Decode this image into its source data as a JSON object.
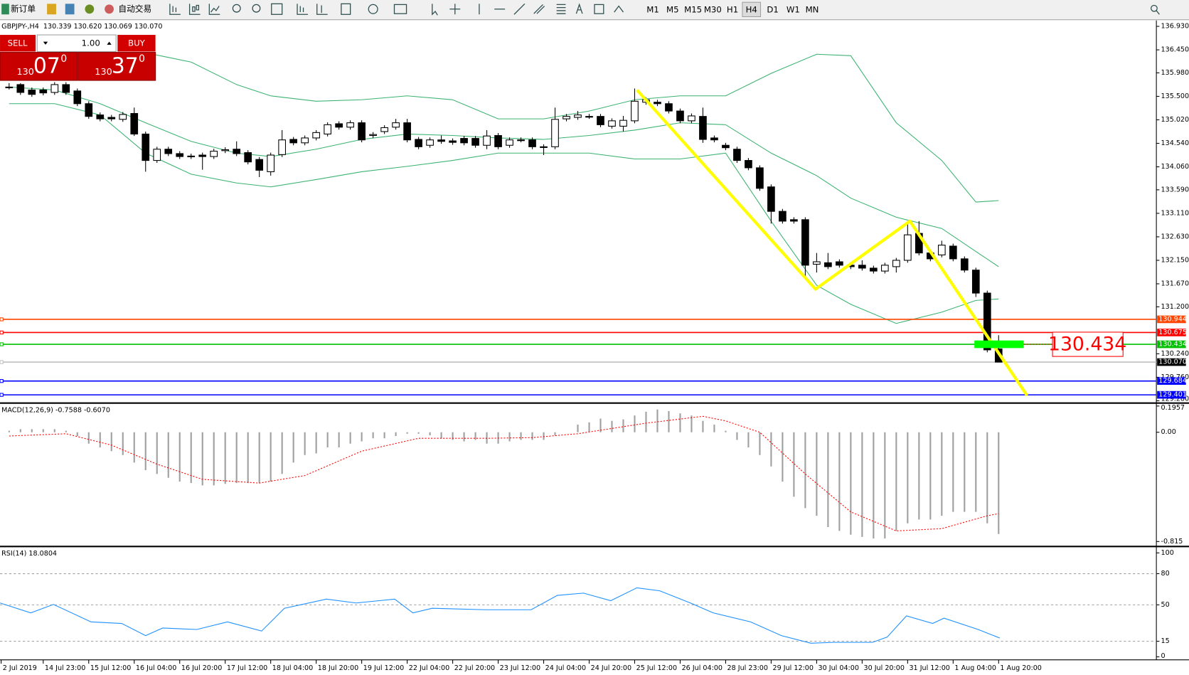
{
  "toolbar": {
    "new_order": "新订单",
    "auto_trading": "自动交易",
    "timeframes": [
      "M1",
      "M5",
      "M15",
      "M30",
      "H1",
      "H4",
      "D1",
      "W1",
      "MN"
    ]
  },
  "trade_panel": {
    "sell": "SELL",
    "lots": "1.00",
    "buy": "BUY",
    "bid": {
      "big": "130",
      "main": "07",
      "pip": "0"
    },
    "ask": {
      "big": "130",
      "main": "37",
      "pip": "0"
    }
  },
  "chart_data": [
    {
      "type": "candlestick",
      "title": "GBPJPY-,H4  130.339 130.620 130.069 130.070",
      "up_color": "#ffffff",
      "down_color": "#000000",
      "open": [
        135.69,
        135.74,
        135.63,
        135.63,
        135.58,
        135.74,
        135.61,
        135.35,
        135.12,
        135.07,
        135.03,
        135.15,
        134.73,
        134.19,
        134.42,
        134.33,
        134.28,
        134.3,
        134.27,
        134.39,
        134.42,
        134.35,
        134.21,
        133.96,
        134.31,
        134.62,
        134.55,
        134.65,
        134.73,
        134.94,
        134.87,
        134.96,
        134.7,
        134.78,
        134.87,
        134.96,
        134.62,
        134.5,
        134.61,
        134.59,
        134.64,
        134.64,
        134.5,
        134.7,
        134.5,
        134.61,
        134.61,
        134.47,
        134.47,
        135.04,
        135.07,
        135.09,
        135.09,
        134.89,
        134.89,
        135.0,
        135.38,
        135.38,
        135.35,
        135.2,
        135.0,
        135.09,
        134.65,
        134.5,
        134.42,
        134.19,
        134.04,
        133.65,
        133.15,
        132.98,
        132.98,
        132.07,
        132.1,
        132.12,
        132.05,
        132.05,
        131.99,
        131.93,
        132.02,
        132.15,
        132.7,
        132.3,
        132.26,
        132.44,
        132.18,
        131.95,
        131.48,
        130.339
      ],
      "high": [
        135.77,
        135.77,
        135.68,
        135.68,
        135.79,
        135.79,
        135.66,
        135.4,
        135.17,
        135.12,
        135.18,
        135.27,
        134.78,
        134.47,
        134.47,
        134.38,
        134.33,
        134.35,
        134.43,
        134.46,
        134.58,
        134.4,
        134.26,
        134.35,
        134.81,
        134.67,
        134.7,
        134.81,
        134.97,
        134.99,
        135.01,
        135.01,
        134.77,
        134.91,
        135.04,
        135.04,
        134.67,
        134.66,
        134.7,
        134.64,
        134.69,
        134.69,
        134.81,
        134.75,
        134.66,
        134.66,
        134.66,
        134.52,
        135.27,
        135.14,
        135.2,
        135.14,
        135.14,
        135.05,
        135.1,
        135.66,
        135.48,
        135.43,
        135.4,
        135.25,
        135.15,
        135.27,
        134.7,
        134.55,
        134.47,
        134.24,
        134.09,
        133.7,
        133.2,
        133.03,
        133.03,
        132.3,
        132.3,
        132.17,
        132.1,
        132.15,
        132.04,
        132.1,
        132.2,
        132.95,
        132.95,
        132.35,
        132.55,
        132.49,
        132.23,
        132.0,
        131.53,
        130.62
      ],
      "low": [
        135.64,
        135.53,
        135.49,
        135.52,
        135.53,
        135.53,
        135.3,
        135.04,
        134.99,
        134.99,
        134.98,
        134.69,
        133.96,
        134.14,
        134.28,
        134.22,
        134.22,
        134.0,
        134.22,
        134.34,
        134.28,
        134.11,
        133.85,
        133.88,
        134.26,
        134.5,
        134.5,
        134.6,
        134.68,
        134.82,
        134.82,
        134.56,
        134.65,
        134.73,
        134.82,
        134.56,
        134.42,
        134.45,
        134.53,
        134.51,
        134.5,
        134.45,
        134.42,
        134.42,
        134.45,
        134.56,
        134.42,
        134.3,
        134.42,
        134.99,
        135.02,
        135.04,
        134.87,
        134.84,
        134.78,
        134.95,
        135.33,
        135.3,
        135.15,
        134.95,
        134.95,
        134.55,
        134.56,
        134.4,
        134.14,
        133.99,
        133.57,
        132.9,
        132.9,
        132.9,
        131.8,
        131.9,
        131.97,
        132.0,
        131.97,
        131.94,
        131.88,
        131.88,
        131.9,
        132.1,
        132.25,
        132.13,
        132.21,
        132.13,
        131.9,
        131.4,
        130.27,
        130.069
      ],
      "close": [
        135.69,
        135.58,
        135.54,
        135.57,
        135.74,
        135.58,
        135.35,
        135.09,
        135.04,
        135.04,
        135.13,
        134.73,
        134.19,
        134.42,
        134.33,
        134.27,
        134.27,
        134.27,
        134.38,
        134.41,
        134.33,
        134.16,
        133.99,
        134.3,
        134.61,
        134.55,
        134.65,
        134.76,
        134.92,
        134.87,
        134.96,
        134.61,
        134.72,
        134.86,
        134.96,
        134.61,
        134.47,
        134.61,
        134.58,
        134.56,
        134.55,
        134.5,
        134.69,
        134.47,
        134.61,
        134.61,
        134.47,
        134.47,
        135.03,
        135.09,
        135.12,
        135.09,
        134.92,
        135.0,
        135.01,
        135.4,
        135.43,
        135.35,
        135.2,
        135.0,
        135.1,
        134.62,
        134.61,
        134.45,
        134.19,
        134.04,
        133.62,
        133.15,
        132.95,
        132.95,
        132.05,
        132.12,
        132.02,
        132.05,
        132.02,
        131.99,
        131.93,
        132.05,
        132.15,
        132.67,
        132.3,
        132.18,
        132.46,
        132.18,
        131.95,
        131.48,
        130.32,
        130.07
      ],
      "bands": {
        "color": "#3cb371",
        "x": [
          0,
          4,
          8,
          12,
          16,
          20,
          23,
          27,
          31,
          35,
          39,
          43,
          47,
          51,
          55,
          59,
          63,
          67,
          71,
          74,
          78,
          82,
          85,
          87
        ],
        "upper": [
          136.36,
          136.39,
          136.39,
          136.39,
          136.2,
          135.74,
          135.51,
          135.4,
          135.43,
          135.51,
          135.43,
          135.04,
          135.04,
          135.2,
          135.43,
          135.51,
          135.51,
          135.97,
          136.36,
          136.33,
          134.96,
          134.19,
          133.34,
          133.37
        ],
        "middle": [
          135.69,
          135.63,
          135.35,
          134.96,
          134.58,
          134.34,
          134.27,
          134.42,
          134.62,
          134.73,
          134.7,
          134.65,
          134.62,
          134.7,
          134.81,
          134.96,
          134.92,
          134.34,
          133.88,
          133.42,
          133.03,
          132.8,
          132.33,
          132.02
        ],
        "lower": [
          135.35,
          135.35,
          135.12,
          134.34,
          133.91,
          133.73,
          133.65,
          133.8,
          133.96,
          134.07,
          134.19,
          134.34,
          134.34,
          134.34,
          134.22,
          134.22,
          134.34,
          132.95,
          131.64,
          131.25,
          130.86,
          131.09,
          131.33,
          131.36
        ]
      },
      "zigzag": {
        "color": "#ffff00",
        "x": [
          55.2,
          70.9,
          79.2,
          89.5
        ],
        "y": [
          135.63,
          131.56,
          132.95,
          129.39
        ]
      },
      "levels": [
        {
          "value": 130.944,
          "color": "#ff4500",
          "box_color": "#ff4500"
        },
        {
          "value": 130.675,
          "color": "#ff0000",
          "box_color": "#ff0000"
        },
        {
          "value": 130.434,
          "color": "#00c000",
          "box_color": "#00c000"
        },
        {
          "value": 130.07,
          "label": "130.070",
          "color": "#c0c0c0",
          "box_color": "#000000"
        },
        {
          "value": 129.684,
          "color": "#0000ff",
          "box_color": "#0000ff"
        },
        {
          "value": 129.401,
          "color": "#0000ff",
          "box_color": "#0000ff"
        }
      ],
      "annotation": {
        "value": 130.434,
        "color": "#00ff00"
      },
      "xlim": [
        -0.8,
        100.87
      ],
      "ylim": [
        129.24,
        137.05
      ],
      "yticks": [
        {
          "value": 136.93,
          "label": "136.930"
        },
        {
          "value": 136.45,
          "label": "136.450"
        },
        {
          "value": 135.98,
          "label": "135.980"
        },
        {
          "value": 135.5,
          "label": "135.500"
        },
        {
          "value": 135.02,
          "label": "135.020"
        },
        {
          "value": 134.54,
          "label": "134.540"
        },
        {
          "value": 134.06,
          "label": "134.060"
        },
        {
          "value": 133.59,
          "label": "133.590"
        },
        {
          "value": 133.11,
          "label": "133.110"
        },
        {
          "value": 132.63,
          "label": "132.630"
        },
        {
          "value": 132.15,
          "label": "132.150"
        },
        {
          "value": 131.67,
          "label": "131.670"
        },
        {
          "value": 131.2,
          "label": "131.200"
        },
        {
          "value": 130.24,
          "label": "130.240"
        },
        {
          "value": 129.76,
          "label": "129.760"
        },
        {
          "value": 129.28,
          "label": "129.280"
        }
      ]
    },
    {
      "type": "macd",
      "title": "MACD(12,26,9) -0.7588 -0.6070",
      "color": "#a0a0a0",
      "values": [
        0.011,
        0.023,
        0.023,
        0.023,
        0.023,
        0.011,
        -0.028,
        -0.085,
        -0.113,
        -0.141,
        -0.17,
        -0.226,
        -0.283,
        -0.311,
        -0.34,
        -0.368,
        -0.379,
        -0.396,
        -0.396,
        -0.385,
        -0.379,
        -0.379,
        -0.379,
        -0.368,
        -0.311,
        -0.226,
        -0.17,
        -0.158,
        -0.113,
        -0.113,
        -0.085,
        -0.068,
        -0.045,
        -0.045,
        -0.028,
        -0.011,
        -0.011,
        -0.023,
        -0.045,
        -0.057,
        -0.068,
        -0.057,
        -0.085,
        -0.085,
        -0.068,
        -0.057,
        -0.057,
        -0.057,
        -0.023,
        0,
        0.057,
        0.074,
        0.102,
        0.085,
        0.096,
        0.125,
        0.153,
        0.17,
        0.158,
        0.141,
        0.125,
        0.085,
        0.057,
        0.011,
        -0.057,
        -0.113,
        -0.17,
        -0.255,
        -0.368,
        -0.481,
        -0.566,
        -0.623,
        -0.707,
        -0.736,
        -0.764,
        -0.781,
        -0.792,
        -0.792,
        -0.736,
        -0.679,
        -0.651,
        -0.651,
        -0.623,
        -0.594,
        -0.594,
        -0.594,
        -0.679,
        -0.7588
      ],
      "signal": {
        "color": "#ff0000",
        "x": [
          0,
          5,
          9,
          13,
          17,
          22,
          26,
          31,
          36,
          42,
          46,
          50,
          56,
          61,
          63,
          66,
          70,
          74,
          78,
          82,
          86,
          87
        ],
        "values": [
          -0.028,
          -0.011,
          -0.096,
          -0.238,
          -0.351,
          -0.379,
          -0.323,
          -0.141,
          -0.045,
          -0.045,
          -0.04,
          -0.011,
          0.068,
          0.119,
          0.085,
          0,
          -0.311,
          -0.594,
          -0.736,
          -0.719,
          -0.623,
          -0.607
        ]
      },
      "ylim": [
        -0.849,
        0.209
      ],
      "yticks": [
        0.1957,
        {
          "value": 0,
          "label": "0.00"
        },
        -0.815
      ]
    },
    {
      "type": "rsi",
      "title": "RSI(14) 18.0804",
      "color": "#1e90ff",
      "x": [
        -0.8,
        1.9,
        3.9,
        7.2,
        9.9,
        12,
        13.5,
        16.5,
        19.2,
        22.2,
        24.2,
        27.9,
        30.5,
        33.9,
        35.5,
        37.2,
        41.9,
        45.9,
        48.2,
        50.5,
        52.9,
        55.2,
        57.2,
        59.9,
        61.9,
        65.2,
        67.9,
        70.5,
        72.5,
        75.9,
        77.2,
        78.9,
        81.2,
        82.2,
        85.2,
        87.1
      ],
      "values": [
        51.8,
        42.3,
        50.4,
        33.6,
        32.1,
        20.4,
        27.7,
        26.3,
        33.6,
        24.8,
        46.7,
        55.5,
        51.8,
        55.5,
        42.3,
        46.7,
        45.3,
        45.3,
        59.1,
        61.3,
        54.0,
        66.4,
        63.5,
        51.8,
        42.3,
        33.6,
        20.4,
        13.1,
        13.9,
        13.9,
        19.0,
        39.4,
        32.1,
        37.2,
        26.3,
        18.0804
      ],
      "levels": [
        80,
        50,
        15
      ],
      "ylim": [
        -2.9,
        105.1
      ],
      "yticks": [
        100,
        80,
        50,
        15,
        0
      ],
      "xticks": [
        {
          "value": -0.7,
          "label": "2 Jul 2019"
        },
        {
          "value": 3,
          "label": "14 Jul 23:00"
        },
        {
          "value": 7,
          "label": "15 Jul 12:00"
        },
        {
          "value": 11,
          "label": "16 Jul 04:00"
        },
        {
          "value": 15,
          "label": "16 Jul 20:00"
        },
        {
          "value": 19,
          "label": "17 Jul 12:00"
        },
        {
          "value": 23,
          "label": "18 Jul 04:00"
        },
        {
          "value": 27,
          "label": "18 Jul 20:00"
        },
        {
          "value": 31,
          "label": "19 Jul 12:00"
        },
        {
          "value": 35,
          "label": "22 Jul 04:00"
        },
        {
          "value": 39,
          "label": "22 Jul 20:00"
        },
        {
          "value": 43,
          "label": "23 Jul 12:00"
        },
        {
          "value": 47,
          "label": "24 Jul 04:00"
        },
        {
          "value": 51,
          "label": "24 Jul 20:00"
        },
        {
          "value": 55,
          "label": "25 Jul 12:00"
        },
        {
          "value": 59,
          "label": "26 Jul 04:00"
        },
        {
          "value": 63,
          "label": "28 Jul 23:00"
        },
        {
          "value": 67,
          "label": "29 Jul 12:00"
        },
        {
          "value": 71,
          "label": "30 Jul 04:00"
        },
        {
          "value": 75,
          "label": "30 Jul 20:00"
        },
        {
          "value": 79,
          "label": "31 Jul 12:00"
        },
        {
          "value": 83,
          "label": "1 Aug 04:00"
        },
        {
          "value": 87,
          "label": "1 Aug 20:00"
        }
      ]
    }
  ]
}
